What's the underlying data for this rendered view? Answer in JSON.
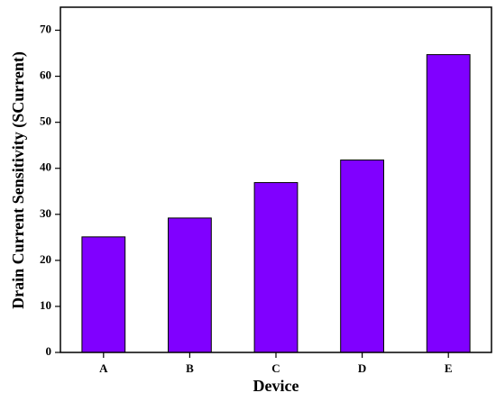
{
  "chart_data": {
    "type": "bar",
    "x_label": "Device",
    "y_label": "Drain Current Sensitivity (SCurrent)",
    "categories": [
      "A",
      "B",
      "C",
      "D",
      "E"
    ],
    "values": [
      25.1,
      29.2,
      36.9,
      41.8,
      64.7
    ],
    "color": "#8000ff",
    "ylim": [
      0,
      75
    ],
    "yticks": [
      0,
      10,
      20,
      30,
      40,
      50,
      60,
      70
    ],
    "grid": false
  }
}
